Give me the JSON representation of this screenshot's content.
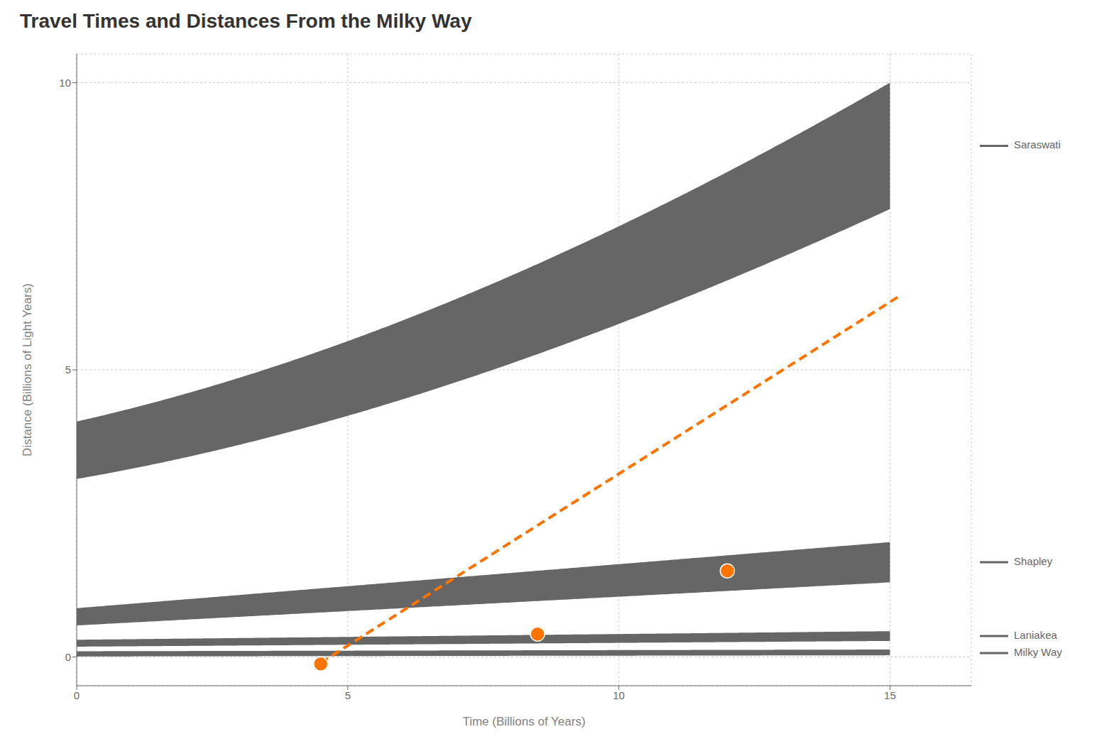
{
  "chart_data": {
    "type": "band",
    "title": "Travel Times and Distances From the Milky Way",
    "x_label": "Time (Billions of Years)",
    "y_label": "Distance (Billions of Light Years)",
    "xlim": [
      0,
      16.5
    ],
    "ylim": [
      -0.5,
      10.5
    ],
    "xticks": [
      0,
      5,
      10,
      15
    ],
    "yticks": [
      0,
      5,
      10
    ],
    "grid": true,
    "legend": "right",
    "series": [
      {
        "name": "Saraswati",
        "type": "spline_band",
        "color": "#666666",
        "x": [
          0,
          5,
          10,
          15
        ],
        "upper": [
          4.1,
          5.5,
          7.5,
          10.0
        ],
        "lower": [
          3.1,
          4.2,
          5.8,
          7.8
        ]
      },
      {
        "name": "Shapley",
        "type": "band",
        "color": "#666666",
        "x": [
          0,
          15
        ],
        "upper": [
          0.85,
          2.0
        ],
        "lower": [
          0.55,
          1.3
        ]
      },
      {
        "name": "Laniakea",
        "type": "band",
        "color": "#666666",
        "x": [
          0,
          15
        ],
        "upper": [
          0.3,
          0.45
        ],
        "lower": [
          0.18,
          0.28
        ]
      },
      {
        "name": "Milky Way",
        "type": "band",
        "color": "#666666",
        "x": [
          0,
          15
        ],
        "upper": [
          0.1,
          0.13
        ],
        "lower": [
          0.01,
          0.03
        ]
      },
      {
        "type": "line",
        "line_style": "dashed",
        "color": "#ff7300",
        "x": [
          4.5,
          15.2
        ],
        "values": [
          -0.1,
          6.3
        ]
      },
      {
        "type": "scatter",
        "color": "#ff7300",
        "x": [
          4.5,
          8.5,
          12.0
        ],
        "values": [
          -0.12,
          0.4,
          1.5
        ]
      }
    ]
  }
}
